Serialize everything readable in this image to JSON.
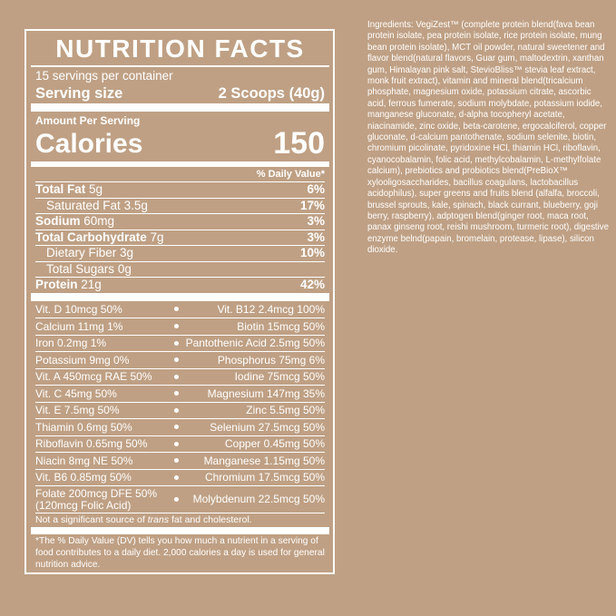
{
  "colors": {
    "background": "#BFA084",
    "text": "#FFFFFF"
  },
  "nutrition_label": {
    "title": "NUTRITION FACTS",
    "servings_per_container": "15 servings per container",
    "serving_size": {
      "label": "Serving size",
      "value": "2 Scoops (40g)"
    },
    "amount_per_serving": "Amount Per Serving",
    "calories": {
      "label": "Calories",
      "value": "150"
    },
    "daily_value_header": "% Daily Value*",
    "nutrients": [
      {
        "name": "Total Fat",
        "amount": "5g",
        "dv": "6%"
      },
      {
        "name": "Saturated Fat",
        "amount": "3.5g",
        "dv": "17%"
      },
      {
        "name": "Sodium",
        "amount": "60mg",
        "dv": "3%"
      },
      {
        "name": "Total Carbohydrate",
        "amount": "7g",
        "dv": "3%"
      },
      {
        "name": "Dietary Fiber",
        "amount": "3g",
        "dv": "10%"
      },
      {
        "name": "Total Sugars",
        "amount": "0g",
        "dv": ""
      },
      {
        "name": "Protein",
        "amount": "21g",
        "dv": "42%"
      }
    ],
    "micronutrients": [
      {
        "left": "Vit. D 10mcg 50%",
        "right": "Vit. B12 2.4mcg 100%"
      },
      {
        "left": "Calcium 11mg 1%",
        "right": "Biotin 15mcg 50%"
      },
      {
        "left": "Iron 0.2mg 1%",
        "right": "Pantothenic Acid 2.5mg 50%"
      },
      {
        "left": "Potassium 9mg 0%",
        "right": "Phosphorus 75mg 6%"
      },
      {
        "left": "Vit. A 450mcg RAE 50%",
        "right": "Iodine 75mcg 50%"
      },
      {
        "left": "Vit. C 45mg 50%",
        "right": "Magnesium 147mg 35%"
      },
      {
        "left": "Vit. E 7.5mg 50%",
        "right": "Zinc 5.5mg 50%"
      },
      {
        "left": "Thiamin 0.6mg 50%",
        "right": "Selenium 27.5mcg 50%"
      },
      {
        "left": "Riboflavin 0.65mg 50%",
        "right": "Copper 0.45mg 50%"
      },
      {
        "left": "Niacin 8mg NE 50%",
        "right": "Manganese 1.15mg 50%"
      },
      {
        "left": "Vit. B6 0.85mg 50%",
        "right": "Chromium 17.5mcg 50%"
      },
      {
        "left": "Folate 200mcg DFE 50%",
        "left2": "(120mcg Folic Acid)",
        "right": "Molybdenum 22.5mcg 50%"
      }
    ],
    "disclaimer": {
      "prefix": "Not a significant source of ",
      "italic": "trans",
      "suffix": " fat and cholesterol."
    },
    "footnote": "*The % Daily Value (DV) tells you how much a nutrient in a serving of food contributes to a daily diet. 2,000 calories a day is used for general nutrition advice."
  },
  "ingredients": {
    "text": "Ingredients: VegiZest™ (complete protein blend(fava bean protein isolate, pea protein isolate, rice protein isolate, mung bean protein isolate), MCT oil powder, natural sweetener and flavor blend(natural flavors, Guar gum, maltodextrin, xanthan gum, Himalayan pink salt, StevioBliss™ stevia leaf extract, monk fruit extract), vitamin and mineral blend(tricalcium phosphate, magnesium oxide, potassium citrate, ascorbic acid, ferrous fumerate, sodium molybdate, potassium iodide, manganese gluconate, d-alpha tocopheryl acetate, niacinamide, zinc oxide, beta-carotene, ergocalciferol, copper gluconate, d-calcium pantothenate, sodium selenite, biotin, chromium picolinate, pyridoxine HCl, thiamin HCl, riboflavin, cyanocobalamin, folic acid, methylcobalamin, L-methylfolate calcium), prebiotics and probiotics blend(PreBioX™ xylooligosaccharides, bacillus coagulans, lactobacillus acidophilus), super greens and fruits blend (alfalfa, broccoli, brussel sprouts, kale, spinach, black currant, blueberry, goji berry, raspberry), adptogen blend(ginger root, maca root, panax ginseng root, reishi mushroom, turmeric root), digestive enzyme belnd(papain, bromelain, protease, lipase), silicon dioxide."
  }
}
